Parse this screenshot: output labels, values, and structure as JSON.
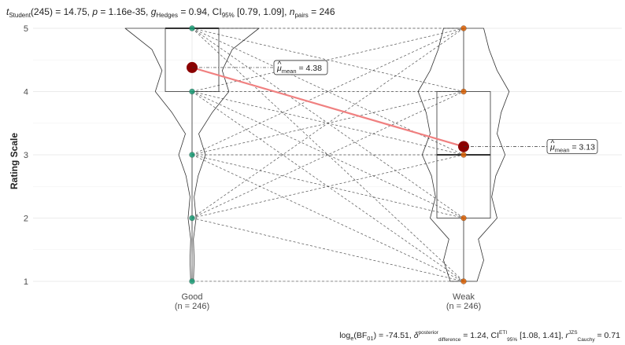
{
  "chart_data": {
    "type": "paired-violin",
    "title": {
      "stat_name": "t",
      "stat_sub": "Student",
      "df": "(245)",
      "stat_value": "14.75",
      "p_label": "p",
      "p_value": "1.16e-35",
      "es_symbol": "g",
      "es_sub": "Hedges",
      "es_value": "0.94",
      "ci_label": "CI",
      "ci_sub": "95%",
      "ci_value": "[0.79, 1.09]",
      "n_label": "n",
      "n_sub": "pairs",
      "n_value": "246"
    },
    "caption": {
      "bf_label": "log",
      "bf_log_sub": "e",
      "bf_paren": "(BF",
      "bf_sub": "01",
      "bf_value": "-74.51",
      "delta_symbol": "δ",
      "delta_sup": "posterior",
      "delta_sub": "difference",
      "delta_value": "1.24",
      "ci_label": "CI",
      "ci_sup": "ETI",
      "ci_sub": "95%",
      "ci_value": "[1.08, 1.41]",
      "r_symbol": "r",
      "r_sup": "JZS",
      "r_sub": "Cauchy",
      "r_value": "0.71"
    },
    "ylabel": "Rating Scale",
    "ylim": [
      0.9,
      5.05
    ],
    "yticks": [
      1,
      2,
      3,
      4,
      5
    ],
    "grid": true,
    "groups": [
      {
        "name": "Good",
        "n_label": "(n = 246)",
        "color": "#1b9e77",
        "values": [
          1,
          2,
          3,
          4,
          5
        ],
        "box": {
          "q1": 4,
          "median": 5,
          "q3": 5,
          "whisker_low": 1,
          "whisker_high": 5
        },
        "violin_density": [
          0.02,
          0.03,
          0.02,
          0.06,
          0.03,
          0.09,
          0.2,
          0.1,
          0.3,
          0.55,
          0.45,
          0.6,
          1.0
        ],
        "mean": 4.38,
        "mean_label": "4.38"
      },
      {
        "name": "Weak",
        "n_label": "(n = 246)",
        "color": "#d95f02",
        "values": [
          1,
          2,
          3,
          4,
          5
        ],
        "box": {
          "q1": 2,
          "median": 3,
          "q3": 4,
          "whisker_low": 1,
          "whisker_high": 5
        },
        "violin_density": [
          0.2,
          0.3,
          0.22,
          0.5,
          0.42,
          0.48,
          0.62,
          0.5,
          0.56,
          0.68,
          0.5,
          0.38,
          0.3
        ],
        "mean": 3.13,
        "mean_label": "3.13"
      }
    ],
    "mean_label_prefix": "mean",
    "mean_label_equals": "= ",
    "mean_color": "#8b0000",
    "mean_line_color": "#f08080",
    "pairs": [
      [
        5,
        5
      ],
      [
        5,
        4
      ],
      [
        5,
        3
      ],
      [
        5,
        2
      ],
      [
        5,
        1
      ],
      [
        4,
        5
      ],
      [
        4,
        4
      ],
      [
        4,
        3
      ],
      [
        4,
        2
      ],
      [
        4,
        1
      ],
      [
        3,
        5
      ],
      [
        3,
        4
      ],
      [
        3,
        3
      ],
      [
        3,
        2
      ],
      [
        3,
        1
      ],
      [
        2,
        5
      ],
      [
        2,
        4
      ],
      [
        2,
        3
      ],
      [
        2,
        1
      ],
      [
        1,
        1
      ]
    ]
  }
}
